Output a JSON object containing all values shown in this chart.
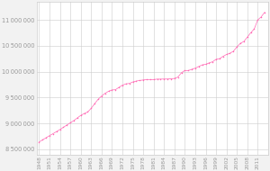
{
  "years": [
    1948,
    1949,
    1950,
    1951,
    1952,
    1953,
    1954,
    1955,
    1956,
    1957,
    1958,
    1959,
    1960,
    1961,
    1962,
    1963,
    1964,
    1965,
    1966,
    1967,
    1968,
    1969,
    1970,
    1971,
    1972,
    1973,
    1974,
    1975,
    1976,
    1977,
    1978,
    1979,
    1980,
    1981,
    1982,
    1983,
    1984,
    1985,
    1986,
    1987,
    1988,
    1989,
    1990,
    1991,
    1992,
    1993,
    1994,
    1995,
    1996,
    1997,
    1998,
    1999,
    2000,
    2001,
    2002,
    2003,
    2004,
    2005,
    2006,
    2007,
    2008,
    2009,
    2010,
    2011,
    2012,
    2013
  ],
  "population": [
    8639369,
    8680175,
    8720716,
    8762000,
    8800000,
    8840000,
    8880000,
    8923000,
    8968000,
    9010000,
    9053000,
    9104000,
    9154000,
    9190000,
    9220000,
    9290000,
    9379000,
    9464000,
    9528000,
    9581000,
    9620000,
    9647000,
    9651000,
    9696000,
    9738000,
    9764000,
    9772000,
    9801000,
    9818000,
    9830000,
    9840000,
    9847000,
    9847000,
    9848000,
    9856000,
    9856000,
    9858000,
    9858000,
    9862000,
    9870000,
    9895000,
    9978000,
    10022000,
    10022000,
    10046000,
    10068000,
    10100000,
    10131000,
    10143000,
    10170000,
    10192000,
    10239000,
    10251000,
    10296000,
    10333000,
    10356000,
    10396000,
    10478000,
    10548000,
    10584000,
    10667000,
    10754000,
    10827000,
    11000000,
    11060000,
    11150000
  ],
  "line_color": "#ff69b4",
  "marker_color": "#ff69b4",
  "bg_color": "#f2f2f2",
  "plot_bg_color": "#ffffff",
  "grid_color": "#cccccc",
  "ylim_min": 8400000,
  "ylim_max": 11350000,
  "yticks": [
    8500000,
    9000000,
    9500000,
    10000000,
    10500000,
    11000000
  ],
  "ytick_labels": [
    "8 500 000",
    "9 000 000",
    "9 500 000",
    "10 000 000",
    "10 500 000",
    "11 000 000"
  ],
  "xlabel_fontsize": 4.2,
  "ylabel_fontsize": 4.8,
  "tick_label_color": "#999999",
  "xlim_min": 1947.5,
  "xlim_max": 2014.0
}
